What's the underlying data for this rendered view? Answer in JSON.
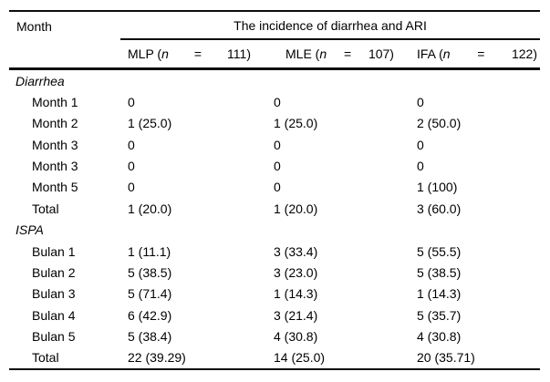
{
  "table": {
    "month_header": "Month",
    "span_header": "The incidence of diarrhea and ARI",
    "columns": [
      {
        "prefix": "MLP (",
        "n": "n",
        "eq": "=",
        "count": "111)"
      },
      {
        "prefix": "MLE (",
        "n": "n",
        "eq": "=",
        "count": "107)"
      },
      {
        "prefix": "IFA (",
        "n": "n",
        "eq": "=",
        "count": "122)"
      }
    ],
    "sections": [
      {
        "title": "Diarrhea",
        "rows": [
          {
            "label": "Month 1",
            "values": [
              "0",
              "0",
              "0"
            ]
          },
          {
            "label": "Month 2",
            "values": [
              "1 (25.0)",
              "1 (25.0)",
              "2 (50.0)"
            ]
          },
          {
            "label": "Month 3",
            "values": [
              "0",
              "0",
              "0"
            ]
          },
          {
            "label": "Month 3",
            "values": [
              "0",
              "0",
              "0"
            ]
          },
          {
            "label": "Month 5",
            "values": [
              "0",
              "0",
              "1 (100)"
            ]
          },
          {
            "label": "Total",
            "values": [
              "1 (20.0)",
              "1 (20.0)",
              "3 (60.0)"
            ]
          }
        ]
      },
      {
        "title": "ISPA",
        "rows": [
          {
            "label": "Bulan 1",
            "values": [
              "1 (11.1)",
              "3 (33.4)",
              "5 (55.5)"
            ]
          },
          {
            "label": "Bulan 2",
            "values": [
              "5 (38.5)",
              "3 (23.0)",
              "5 (38.5)"
            ]
          },
          {
            "label": "Bulan 3",
            "values": [
              "5 (71.4)",
              "1 (14.3)",
              "1 (14.3)"
            ]
          },
          {
            "label": "Bulan 4",
            "values": [
              "6 (42.9)",
              "3 (21.4)",
              "5 (35.7)"
            ]
          },
          {
            "label": "Bulan 5",
            "values": [
              "5 (38.4)",
              "4 (30.8)",
              "4 (30.8)"
            ]
          },
          {
            "label": "Total",
            "values": [
              "22 (39.29)",
              "14 (25.0)",
              "20 (35.71)"
            ]
          }
        ]
      }
    ]
  }
}
